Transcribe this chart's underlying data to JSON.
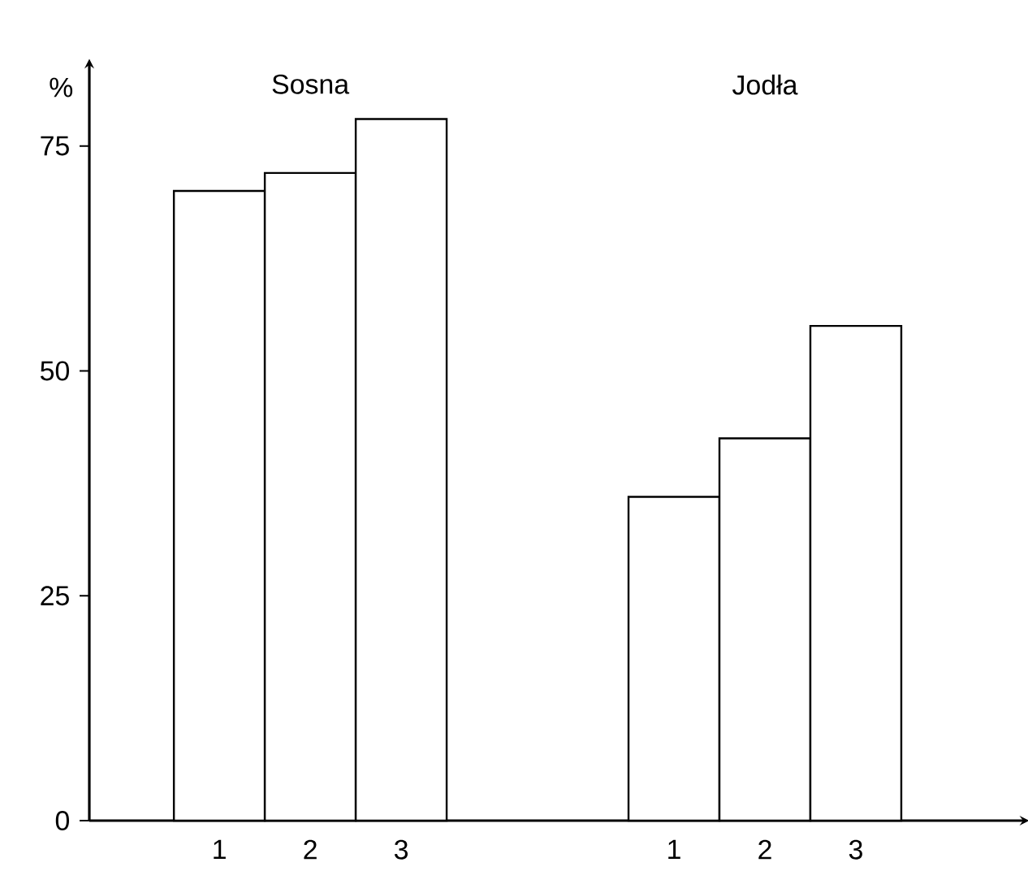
{
  "chart_data": {
    "type": "bar",
    "ylabel": "%",
    "categories": [
      "1",
      "2",
      "3",
      null,
      null,
      "1",
      "2",
      "3"
    ],
    "values": [
      70,
      72,
      78,
      null,
      null,
      36,
      42.5,
      55
    ],
    "color": "#ffffff",
    "ylim": [
      0,
      84
    ],
    "yticks": [
      0,
      25,
      50,
      75
    ],
    "grid": false,
    "annotations": [
      "Sosna",
      "Jodła"
    ]
  }
}
